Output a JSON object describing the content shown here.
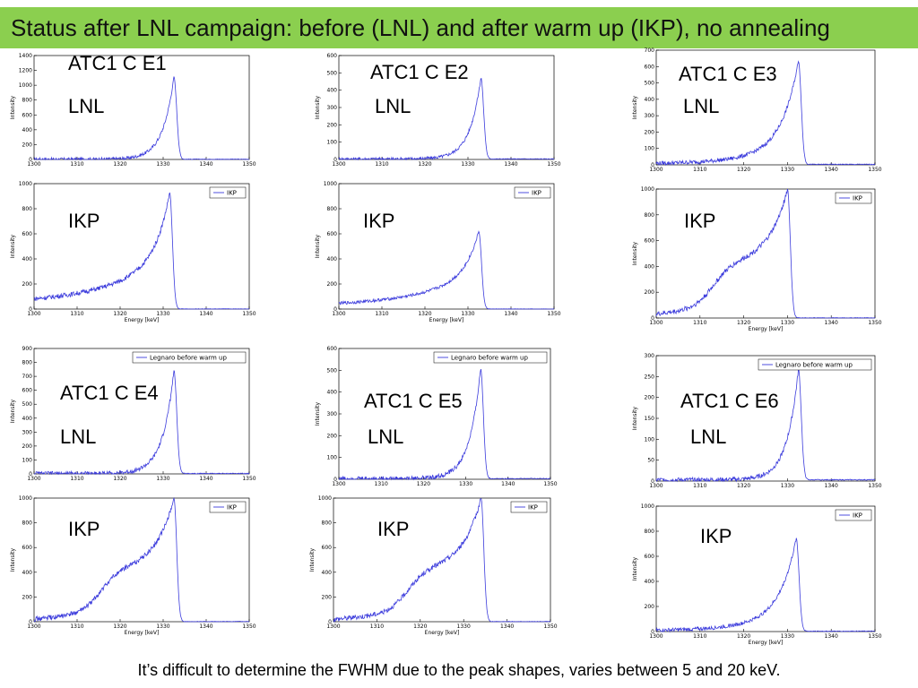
{
  "slide": {
    "title": "Status after LNL campaign: before (LNL) and after warm up (IKP), no annealing",
    "footer": "It’s difficult to determine the FWHM due to the peak shapes, varies between 5 and 20 keV."
  },
  "colors": {
    "title_bar": "#8bcf4f",
    "series_line": "#3b3bdc"
  },
  "chart_data": [
    {
      "type": "line",
      "detector": "ATC1 C E1",
      "campaign": "LNL",
      "xlabel": "",
      "ylabel": "Intensity",
      "legend": "",
      "xlim": [
        1300,
        1350
      ],
      "ylim": [
        0,
        1400
      ],
      "xticks": [
        1300,
        1310,
        1320,
        1330,
        1340,
        1350
      ],
      "yticks": [
        0,
        200,
        400,
        600,
        800,
        1000,
        1200,
        1400
      ],
      "peak": 1332.5,
      "height": 1110,
      "tail": "low"
    },
    {
      "type": "line",
      "detector": "ATC1 C E2",
      "campaign": "LNL",
      "xlabel": "",
      "ylabel": "Intensity",
      "legend": "",
      "xlim": [
        1300,
        1350
      ],
      "ylim": [
        0,
        600
      ],
      "xticks": [
        1300,
        1310,
        1320,
        1330,
        1340,
        1350
      ],
      "yticks": [
        0,
        100,
        200,
        300,
        400,
        500,
        600
      ],
      "peak": 1333,
      "height": 470,
      "tail": "low"
    },
    {
      "type": "line",
      "detector": "ATC1 C E3",
      "campaign": "LNL",
      "xlabel": "",
      "ylabel": "Intensity",
      "legend": "",
      "xlim": [
        1300,
        1350
      ],
      "ylim": [
        0,
        700
      ],
      "xticks": [
        1300,
        1310,
        1320,
        1330,
        1340,
        1350
      ],
      "yticks": [
        0,
        100,
        200,
        300,
        400,
        500,
        600,
        700
      ],
      "peak": 1332.5,
      "height": 630,
      "tail": "mid"
    },
    {
      "type": "line",
      "detector": "ATC1 C E1",
      "campaign": "IKP",
      "xlabel": "Energy [keV]",
      "ylabel": "Intensity",
      "legend": "IKP",
      "xlim": [
        1300,
        1350
      ],
      "ylim": [
        0,
        1000
      ],
      "xticks": [
        1300,
        1310,
        1320,
        1330,
        1340,
        1350
      ],
      "yticks": [
        0,
        200,
        400,
        600,
        800,
        1000
      ],
      "peak": 1331.5,
      "height": 930,
      "tail": "high",
      "base": 40
    },
    {
      "type": "line",
      "detector": "ATC1 C E2",
      "campaign": "IKP",
      "xlabel": "Energy [keV]",
      "ylabel": "Intensity",
      "legend": "IKP",
      "xlim": [
        1300,
        1350
      ],
      "ylim": [
        0,
        1000
      ],
      "xticks": [
        1300,
        1310,
        1320,
        1330,
        1340,
        1350
      ],
      "yticks": [
        0,
        200,
        400,
        600,
        800,
        1000
      ],
      "peak": 1332.5,
      "height": 620,
      "tail": "high",
      "base": 20
    },
    {
      "type": "line",
      "detector": "ATC1 C E3",
      "campaign": "IKP",
      "xlabel": "Energy [keV]",
      "ylabel": "Intensity",
      "legend": "IKP",
      "xlim": [
        1300,
        1350
      ],
      "ylim": [
        0,
        1000
      ],
      "xticks": [
        1300,
        1310,
        1320,
        1330,
        1340,
        1350
      ],
      "yticks": [
        0,
        200,
        400,
        600,
        800,
        1000
      ],
      "peak": 1330,
      "height": 1000,
      "tail": "shoulder",
      "base": 30
    },
    {
      "type": "line",
      "detector": "ATC1 C E4",
      "campaign": "LNL",
      "xlabel": "",
      "ylabel": "Intensity",
      "legend": "Legnaro before warm up",
      "xlim": [
        1300,
        1350
      ],
      "ylim": [
        0,
        900
      ],
      "xticks": [
        1300,
        1310,
        1320,
        1330,
        1340,
        1350
      ],
      "yticks": [
        0,
        100,
        200,
        300,
        400,
        500,
        600,
        700,
        800,
        900
      ],
      "peak": 1332.5,
      "height": 740,
      "tail": "low"
    },
    {
      "type": "line",
      "detector": "ATC1 C E5",
      "campaign": "LNL",
      "xlabel": "",
      "ylabel": "Intensity",
      "legend": "Legnaro before warm up",
      "xlim": [
        1300,
        1350
      ],
      "ylim": [
        0,
        600
      ],
      "xticks": [
        1300,
        1310,
        1320,
        1330,
        1340,
        1350
      ],
      "yticks": [
        0,
        100,
        200,
        300,
        400,
        500,
        600
      ],
      "peak": 1333.5,
      "height": 505,
      "tail": "low"
    },
    {
      "type": "line",
      "detector": "ATC1 C E6",
      "campaign": "LNL",
      "xlabel": "",
      "ylabel": "Intensity",
      "legend": "Legnaro before warm up",
      "xlim": [
        1300,
        1350
      ],
      "ylim": [
        0,
        300
      ],
      "xticks": [
        1300,
        1310,
        1320,
        1330,
        1340,
        1350
      ],
      "yticks": [
        0,
        50,
        100,
        150,
        200,
        250,
        300
      ],
      "peak": 1332.5,
      "height": 265,
      "tail": "low"
    },
    {
      "type": "line",
      "detector": "ATC1 C E4",
      "campaign": "IKP",
      "xlabel": "Energy [keV]",
      "ylabel": "Intensity",
      "legend": "IKP",
      "xlim": [
        1300,
        1350
      ],
      "ylim": [
        0,
        1000
      ],
      "xticks": [
        1300,
        1310,
        1320,
        1330,
        1340,
        1350
      ],
      "yticks": [
        0,
        200,
        400,
        600,
        800,
        1000
      ],
      "peak": 1332.5,
      "height": 1000,
      "tail": "shoulder",
      "base": 20
    },
    {
      "type": "line",
      "detector": "ATC1 C E5",
      "campaign": "IKP",
      "xlabel": "Energy [keV]",
      "ylabel": "Intensity",
      "legend": "IKP",
      "xlim": [
        1300,
        1350
      ],
      "ylim": [
        0,
        1000
      ],
      "xticks": [
        1300,
        1310,
        1320,
        1330,
        1340,
        1350
      ],
      "yticks": [
        0,
        200,
        400,
        600,
        800,
        1000
      ],
      "peak": 1334,
      "height": 1000,
      "tail": "shoulder",
      "base": 20
    },
    {
      "type": "line",
      "detector": "ATC1 C E6",
      "campaign": "IKP",
      "xlabel": "Energy [keV]",
      "ylabel": "Intensity",
      "legend": "IKP",
      "xlim": [
        1300,
        1350
      ],
      "ylim": [
        0,
        1000
      ],
      "xticks": [
        1300,
        1310,
        1320,
        1330,
        1340,
        1350
      ],
      "yticks": [
        0,
        200,
        400,
        600,
        800,
        1000
      ],
      "peak": 1332,
      "height": 740,
      "tail": "mid",
      "base": 10
    }
  ]
}
